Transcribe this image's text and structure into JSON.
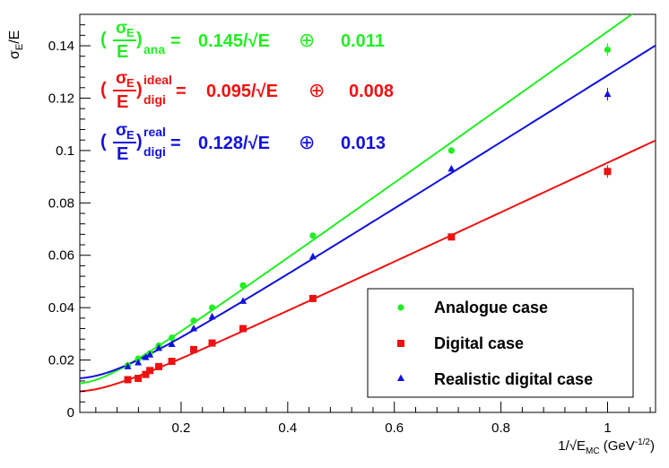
{
  "chart_data": {
    "type": "scatter",
    "xlabel": "1/√E_MC (GeV^-1/2)",
    "ylabel": "σ_E/E",
    "xlim": [
      0.01,
      1.09
    ],
    "ylim": [
      0,
      0.152
    ],
    "x_ticks": [
      0.2,
      0.4,
      0.6,
      0.8,
      1
    ],
    "x_tick_labels": [
      "0.2",
      "0.4",
      "0.6",
      "0.8",
      "1"
    ],
    "y_ticks": [
      0,
      0.02,
      0.04,
      0.06,
      0.08,
      0.1,
      0.12,
      0.14
    ],
    "y_tick_labels": [
      "0",
      "0.02",
      "0.04",
      "0.06",
      "0.08",
      "0.1",
      "0.12",
      "0.14"
    ],
    "colors": {
      "analogue": "#22ee22",
      "digital": "#ee1111",
      "realistic": "#1111dd"
    },
    "series": [
      {
        "key": "analogue",
        "name": "Analogue case",
        "marker": "circle",
        "fit": {
          "a": 0.145,
          "b": 0.011
        },
        "x": [
          0.1,
          0.1195,
          0.1414,
          0.1581,
          0.1826,
          0.2236,
          0.2582,
          0.3162,
          0.4472,
          0.7071,
          1.0
        ],
        "y": [
          0.018,
          0.0205,
          0.0225,
          0.0255,
          0.0285,
          0.035,
          0.04,
          0.0485,
          0.0675,
          0.1,
          0.1385
        ]
      },
      {
        "key": "digital",
        "name": "Digital case",
        "marker": "square",
        "fit": {
          "a": 0.095,
          "b": 0.008
        },
        "x": [
          0.1,
          0.1195,
          0.1336,
          0.1414,
          0.1581,
          0.1826,
          0.2236,
          0.2582,
          0.3162,
          0.4472,
          0.7071,
          1.0
        ],
        "y": [
          0.0125,
          0.013,
          0.0145,
          0.016,
          0.0175,
          0.0195,
          0.024,
          0.0265,
          0.032,
          0.0435,
          0.067,
          0.092
        ]
      },
      {
        "key": "realistic",
        "name": "Realistic digital case",
        "marker": "triangle",
        "fit": {
          "a": 0.128,
          "b": 0.013
        },
        "x": [
          0.1,
          0.1195,
          0.1336,
          0.1414,
          0.1581,
          0.1826,
          0.2236,
          0.2582,
          0.3162,
          0.4472,
          0.7071,
          1.0
        ],
        "y": [
          0.0175,
          0.019,
          0.021,
          0.022,
          0.0245,
          0.026,
          0.032,
          0.0365,
          0.0425,
          0.0595,
          0.093,
          0.1215
        ]
      }
    ],
    "annotations": [
      {
        "key": "analogue",
        "label_sup": "",
        "label_sub": "ana",
        "coef": "0.145/√E",
        "plus": "⊕",
        "const": "0.011"
      },
      {
        "key": "digital",
        "label_sup": "ideal",
        "label_sub": "digi",
        "coef": "0.095/√E",
        "plus": "⊕",
        "const": "0.008"
      },
      {
        "key": "realistic",
        "label_sup": "real",
        "label_sub": "digi",
        "coef": "0.128/√E",
        "plus": "⊕",
        "const": "0.013"
      }
    ],
    "legend": {
      "position": "bottom-right",
      "entries": [
        "Analogue case",
        "Digital case",
        "Realistic digital case"
      ]
    }
  }
}
